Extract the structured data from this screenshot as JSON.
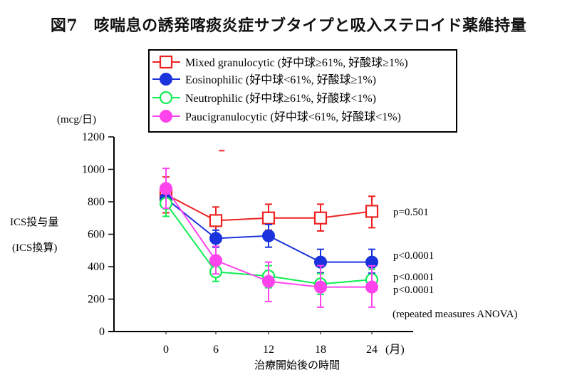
{
  "title": "図7　咳喘息の誘発喀痰炎症サブタイプと吸入ステロイド薬維持量",
  "chart_data": {
    "type": "line",
    "title": "図7　咳喘息の誘発喀痰炎症サブタイプと吸入ステロイド薬維持量",
    "xlabel": "治療開始後の時間",
    "x_unit": "(月)",
    "ylabel_line1": "ICS投与量",
    "ylabel_line2": "(ICS換算)",
    "y_unit": "(mcg/日)",
    "x": [
      0,
      6,
      12,
      18,
      24
    ],
    "x_tick_labels": [
      "0",
      "6",
      "12",
      "18",
      "24"
    ],
    "ylim": [
      0,
      1200
    ],
    "y_ticks": [
      0,
      200,
      400,
      600,
      800,
      1000,
      1200
    ],
    "y_tick_labels": [
      "0",
      "200",
      "400",
      "600",
      "800",
      "1000",
      "1200"
    ],
    "grid": false,
    "legend_position": "top",
    "series": [
      {
        "name": "Mixed granulocytic (好中球≥61%, 好酸球≥1%)",
        "color": "#ee2222",
        "marker": "open-square",
        "values": [
          845,
          684,
          700,
          700,
          741
        ],
        "err_low": [
          732,
          604,
          625,
          620,
          640
        ],
        "err_high": [
          953,
          768,
          785,
          785,
          834
        ],
        "p_value": "p=0.501"
      },
      {
        "name": "Eosinophilic (好中球<61%, 好酸球≥1%)",
        "color": "#1a33dd",
        "marker": "filled-circle",
        "values": [
          820,
          574,
          590,
          428,
          428
        ],
        "err_low": [
          760,
          520,
          520,
          362,
          360
        ],
        "err_high": [
          880,
          625,
          660,
          507,
          507
        ],
        "p_value": "p<0.0001"
      },
      {
        "name": "Neutrophilic (好中球≥61%, 好酸球<1%)",
        "color": "#11ee55",
        "marker": "open-circle",
        "values": [
          790,
          368,
          342,
          293,
          320
        ],
        "err_low": [
          710,
          309,
          270,
          229,
          255
        ],
        "err_high": [
          870,
          430,
          406,
          357,
          385
        ],
        "p_value": "p<0.0001"
      },
      {
        "name": "Paucigranulocytic (好中球<61%, 好酸球<1%)",
        "color": "#ff44ee",
        "marker": "filled-circle",
        "values": [
          882,
          438,
          309,
          274,
          274
        ],
        "err_low": [
          760,
          355,
          185,
          150,
          150
        ],
        "err_high": [
          1006,
          525,
          428,
          406,
          405
        ],
        "p_value": "p<0.0001"
      }
    ],
    "annotations": [
      "p=0.501",
      "p<0.0001",
      "p<0.0001",
      "p<0.0001",
      "(repeated measures ANOVA)"
    ],
    "stray_mark": {
      "x_month": 6.5,
      "y": 1115,
      "color": "#ee2222"
    }
  }
}
